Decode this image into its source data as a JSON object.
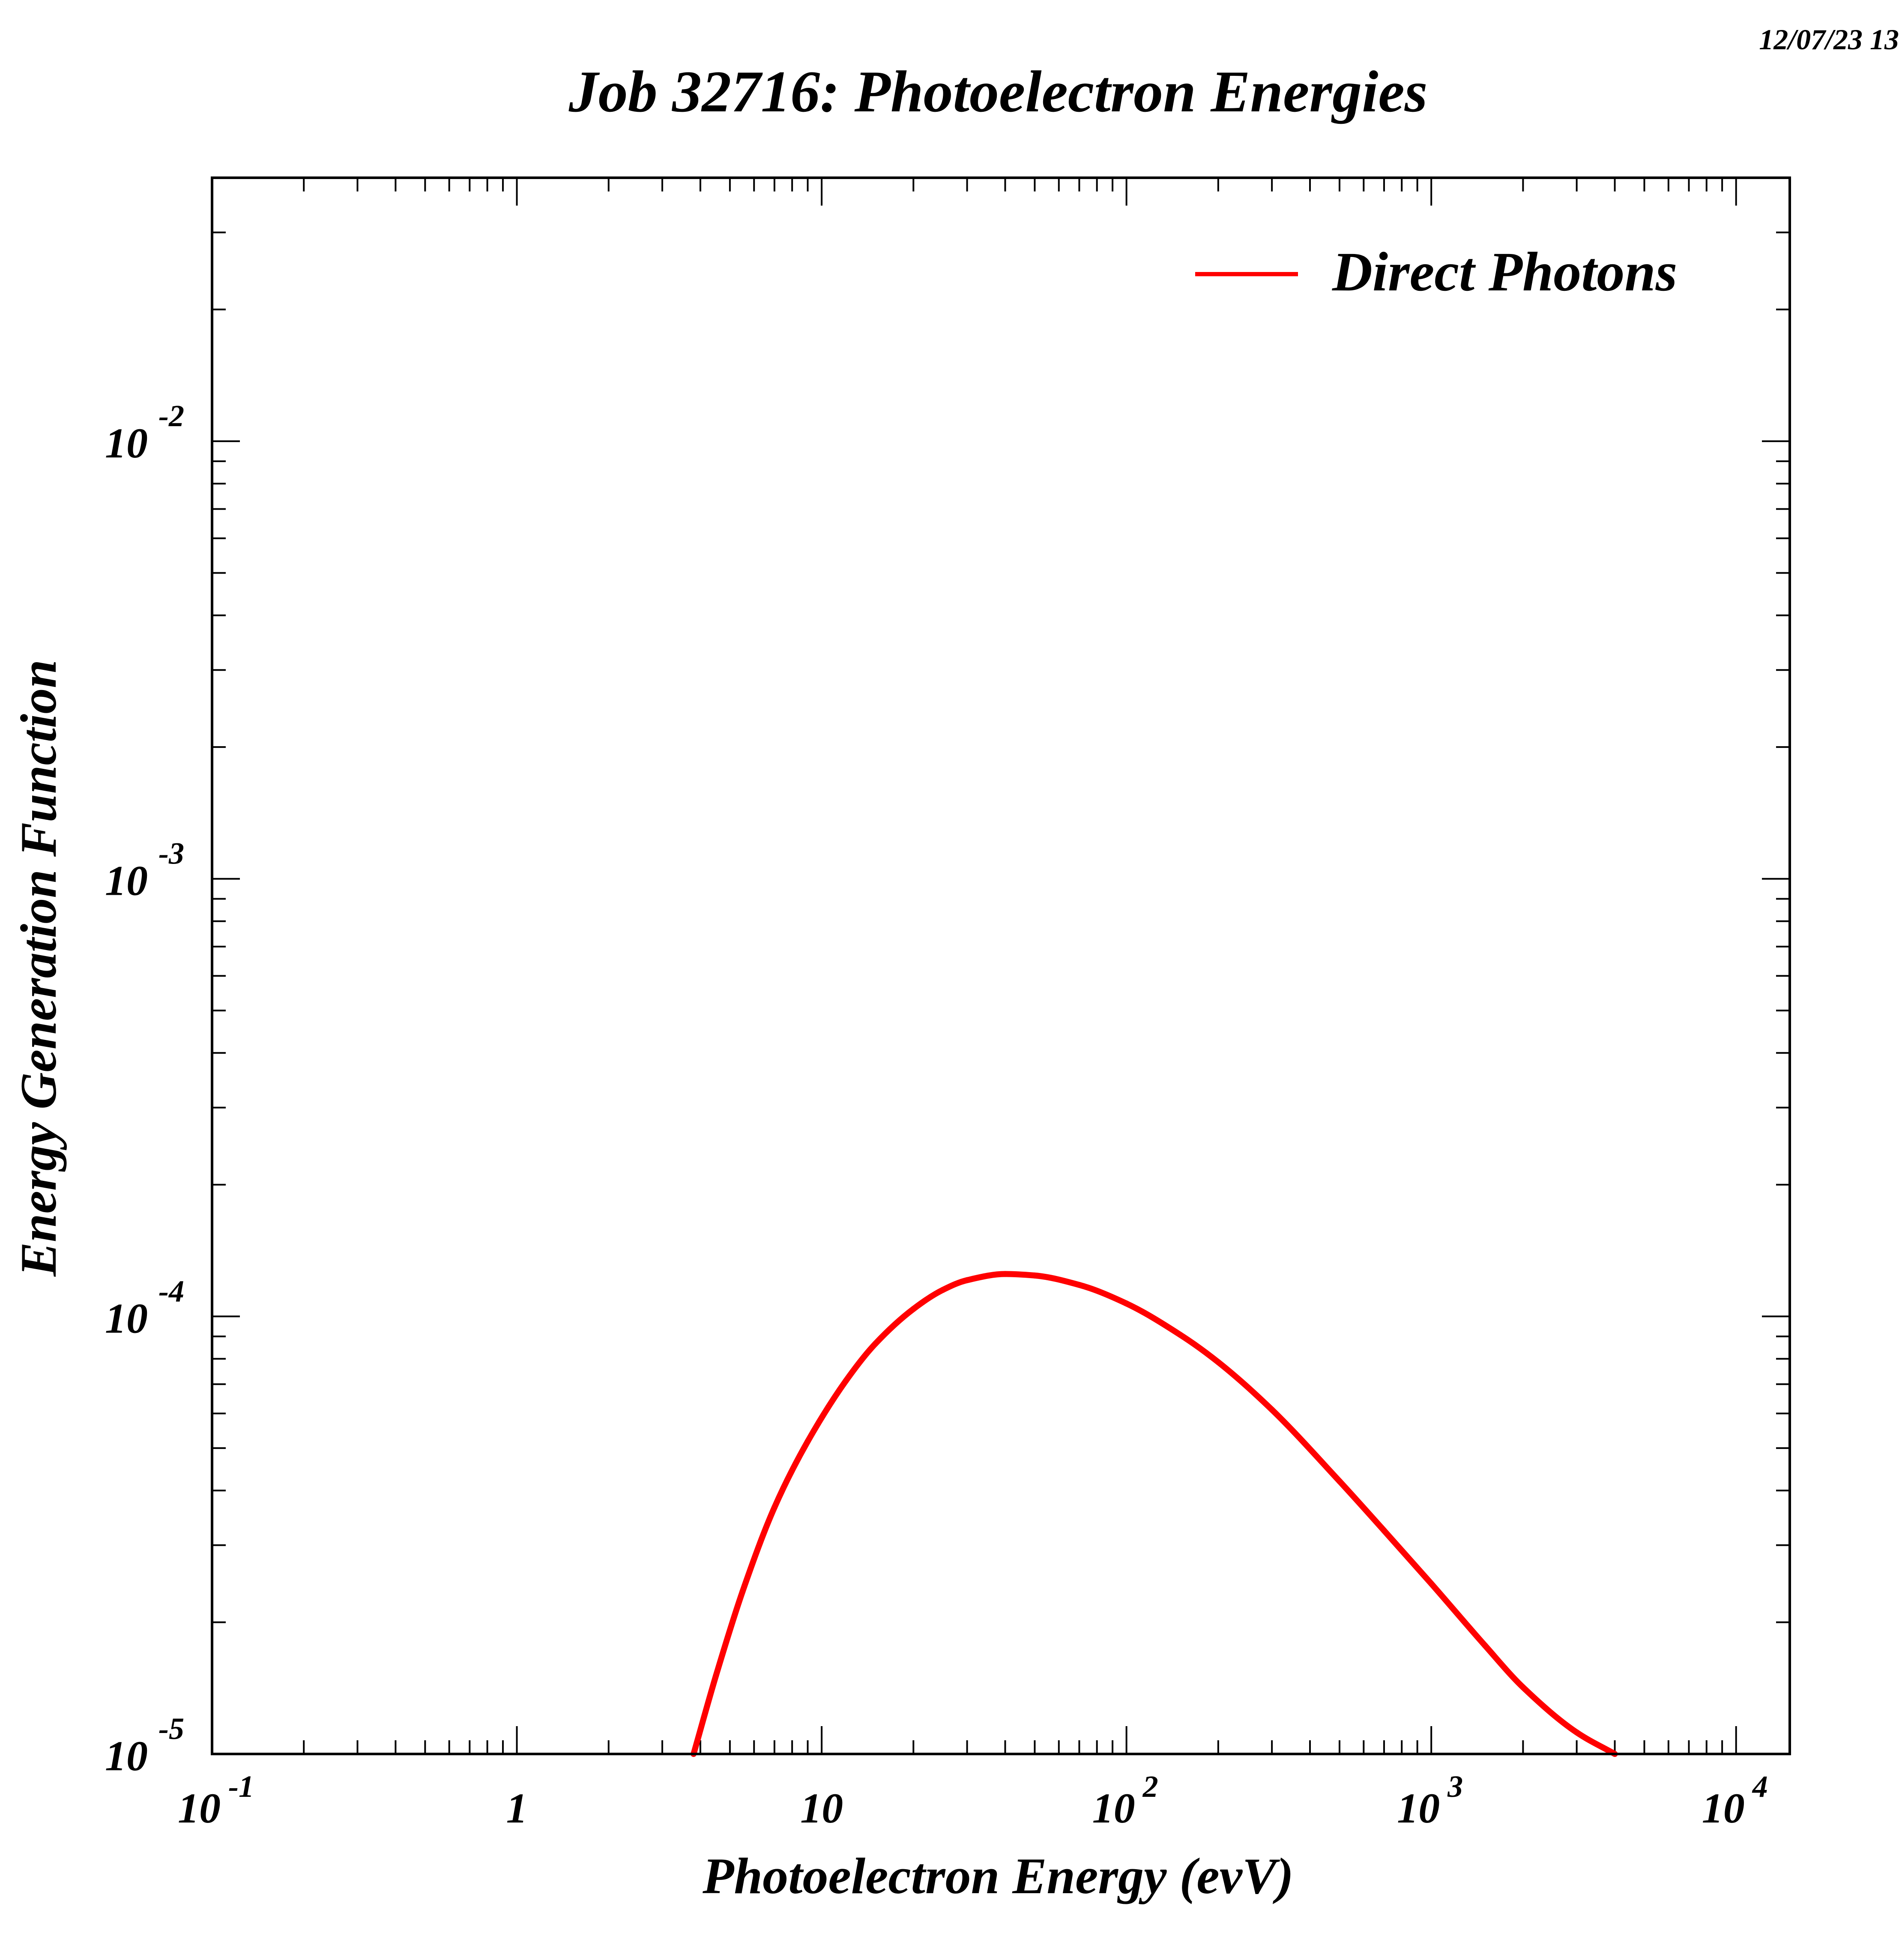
{
  "timestamp": "12/07/23   13",
  "chart_data": {
    "type": "line",
    "title": "Job 32716: Photoelectron Energies",
    "xlabel": "Photoelectron Energy (evV)",
    "ylabel": "Energy Generation Function",
    "xscale": "log",
    "yscale": "log",
    "xlim": [
      0.1,
      15000
    ],
    "ylim": [
      1e-05,
      0.04
    ],
    "grid": false,
    "legend_position": "top-right",
    "x_ticks": [
      {
        "value": 0.1,
        "base": "10",
        "exp": "-1"
      },
      {
        "value": 1,
        "base": "1",
        "exp": ""
      },
      {
        "value": 10,
        "base": "10",
        "exp": ""
      },
      {
        "value": 100,
        "base": "10",
        "exp": "2"
      },
      {
        "value": 1000,
        "base": "10",
        "exp": "3"
      },
      {
        "value": 10000,
        "base": "10",
        "exp": "4"
      }
    ],
    "y_ticks": [
      {
        "value": 1e-05,
        "base": "10",
        "exp": "-5"
      },
      {
        "value": 0.0001,
        "base": "10",
        "exp": "-4"
      },
      {
        "value": 0.001,
        "base": "10",
        "exp": "-3"
      },
      {
        "value": 0.01,
        "base": "10",
        "exp": "-2"
      }
    ],
    "series": [
      {
        "name": "Direct Photons",
        "color": "#ff0000",
        "x": [
          3.8,
          4.5,
          5.5,
          7,
          9,
          12,
          15,
          20,
          25,
          30,
          40,
          50,
          70,
          100,
          150,
          200,
          300,
          500,
          700,
          1000,
          1500,
          2000,
          3000,
          4000
        ],
        "y": [
          1e-05,
          1.51e-05,
          2.35e-05,
          3.66e-05,
          5.18e-05,
          7.12e-05,
          8.66e-05,
          0.000104,
          0.000115,
          0.000121,
          0.000125,
          0.000124,
          0.000118,
          0.000107,
          9.08e-05,
          7.86e-05,
          6.12e-05,
          4.2e-05,
          3.24e-05,
          2.45e-05,
          1.77e-05,
          1.42e-05,
          1.12e-05,
          1e-05
        ]
      }
    ]
  }
}
